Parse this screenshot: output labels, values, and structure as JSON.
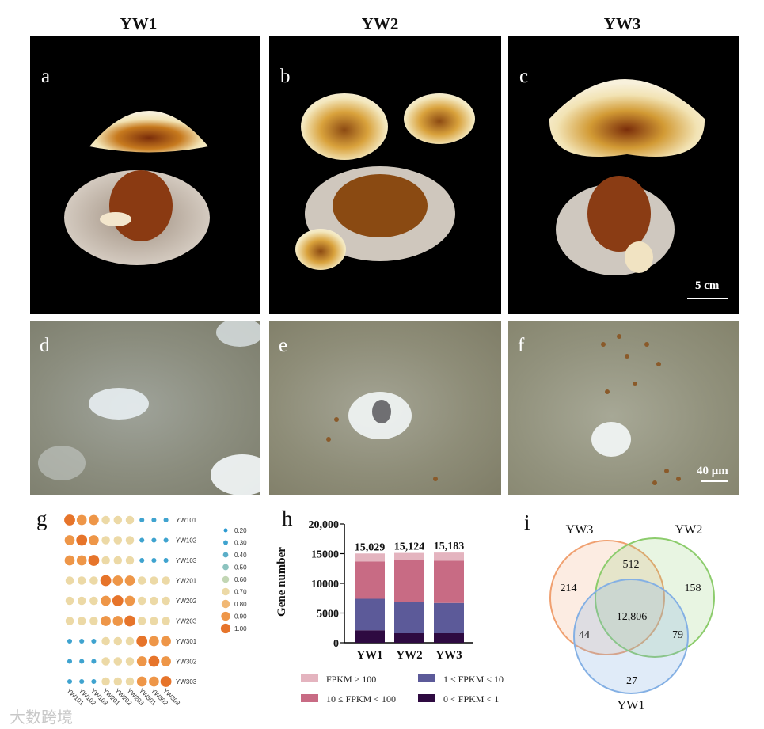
{
  "columns": [
    "YW1",
    "YW2",
    "YW3"
  ],
  "photo_panels": [
    {
      "letter": "a"
    },
    {
      "letter": "b"
    },
    {
      "letter": "c"
    }
  ],
  "micro_panels": [
    {
      "letter": "d"
    },
    {
      "letter": "e"
    },
    {
      "letter": "f"
    }
  ],
  "scale_bars": {
    "photo": "5 cm",
    "micro": "40 μm"
  },
  "panel_g": {
    "letter": "g",
    "rows": [
      "YW101",
      "YW102",
      "YW103",
      "YW201",
      "YW202",
      "YW203",
      "YW301",
      "YW302",
      "YW303"
    ],
    "cols": [
      "YW101",
      "YW102",
      "YW103",
      "YW201",
      "YW202",
      "YW203",
      "YW301",
      "YW302",
      "YW303"
    ],
    "legend_values": [
      0.2,
      0.3,
      0.4,
      0.5,
      0.6,
      0.7,
      0.8,
      0.9,
      1.0
    ],
    "legend_labels": [
      "0.20",
      "0.30",
      "0.40",
      "0.50",
      "0.60",
      "0.70",
      "0.80",
      "0.90",
      "1.00"
    ],
    "legend_colors": [
      "#2c9ad1",
      "#3fa3cf",
      "#5aaec8",
      "#8cc3bf",
      "#c2d6b4",
      "#ecd9a6",
      "#f1b874",
      "#ee9648",
      "#e6742a"
    ],
    "matrix": [
      [
        1.0,
        0.95,
        0.95,
        0.75,
        0.75,
        0.75,
        0.3,
        0.3,
        0.3
      ],
      [
        0.95,
        1.0,
        0.95,
        0.75,
        0.75,
        0.75,
        0.3,
        0.3,
        0.3
      ],
      [
        0.95,
        0.95,
        1.0,
        0.75,
        0.75,
        0.75,
        0.3,
        0.3,
        0.3
      ],
      [
        0.75,
        0.75,
        0.75,
        1.0,
        0.95,
        0.95,
        0.65,
        0.65,
        0.65
      ],
      [
        0.75,
        0.75,
        0.75,
        0.95,
        1.0,
        0.95,
        0.7,
        0.65,
        0.65
      ],
      [
        0.75,
        0.75,
        0.75,
        0.95,
        0.95,
        1.0,
        0.75,
        0.7,
        0.7
      ],
      [
        0.3,
        0.3,
        0.3,
        0.65,
        0.7,
        0.75,
        1.0,
        0.95,
        0.95
      ],
      [
        0.3,
        0.3,
        0.3,
        0.65,
        0.65,
        0.7,
        0.95,
        1.0,
        0.95
      ],
      [
        0.3,
        0.3,
        0.3,
        0.65,
        0.65,
        0.7,
        0.95,
        0.95,
        1.0
      ]
    ]
  },
  "panel_h": {
    "letter": "h"
  },
  "panel_i": {
    "letter": "i"
  },
  "chart_data": [
    {
      "type": "bar",
      "panel": "h",
      "categories": [
        "YW1",
        "YW2",
        "YW3"
      ],
      "ylabel": "Gene number",
      "ylim": [
        0,
        20000
      ],
      "yticks": [
        "0",
        "5000",
        "10000",
        "15000",
        "20,000"
      ],
      "ytick_values": [
        0,
        5000,
        10000,
        15000,
        20000
      ],
      "totals": [
        "15,029",
        "15,124",
        "15,183"
      ],
      "series": [
        {
          "name": "0 < FPKM < 1",
          "color": "#2e0a41",
          "values": [
            2100,
            1600,
            1600
          ]
        },
        {
          "name": "1 ≤ FPKM < 10",
          "color": "#5c5a99",
          "values": [
            5300,
            5300,
            5100
          ]
        },
        {
          "name": "10 ≤ FPKM < 100",
          "color": "#c86b84",
          "values": [
            6300,
            7000,
            7100
          ]
        },
        {
          "name": "FPKM ≥ 100",
          "color": "#e4b4bf",
          "values": [
            1329,
            1224,
            1383
          ]
        }
      ]
    },
    {
      "type": "venn",
      "panel": "i",
      "sets": [
        "YW3",
        "YW2",
        "YW1"
      ],
      "set_colors": [
        "#f0a070",
        "#8ccc6c",
        "#84b0e4"
      ],
      "regions": {
        "YW3_only": "214",
        "YW3_YW2": "512",
        "YW2_only": "158",
        "all_three": "12,806",
        "YW3_YW1": "44",
        "YW2_YW1": "79",
        "YW1_only": "27"
      }
    }
  ],
  "watermark": "大数跨境"
}
